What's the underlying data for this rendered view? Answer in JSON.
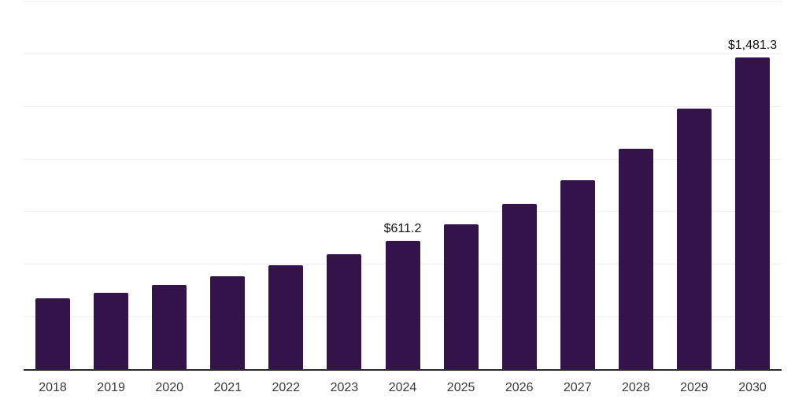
{
  "chart_data": {
    "type": "bar",
    "title": "",
    "categories": [
      "2018",
      "2019",
      "2020",
      "2021",
      "2022",
      "2023",
      "2024",
      "2025",
      "2026",
      "2027",
      "2028",
      "2029",
      "2030"
    ],
    "values": [
      337,
      363,
      400,
      441,
      494,
      546,
      611.2,
      688,
      785,
      897,
      1047,
      1238,
      1481.3
    ],
    "annotations": [
      {
        "category": "2024",
        "label": "$611.2"
      },
      {
        "category": "2030",
        "label": "$1,481.3"
      }
    ],
    "xlabel": "",
    "ylabel": "",
    "ylim": [
      0,
      1750
    ],
    "grid_step": 250,
    "grid": "horizontal",
    "legend_position": "none",
    "y_axis_tick_labels_visible": false,
    "colors": {
      "bar": "#331349",
      "grid": "#ededed",
      "axis": "#2b2b2b",
      "tick_label": "#3a3a3a",
      "data_label": "#111111",
      "background": "#ffffff"
    }
  }
}
